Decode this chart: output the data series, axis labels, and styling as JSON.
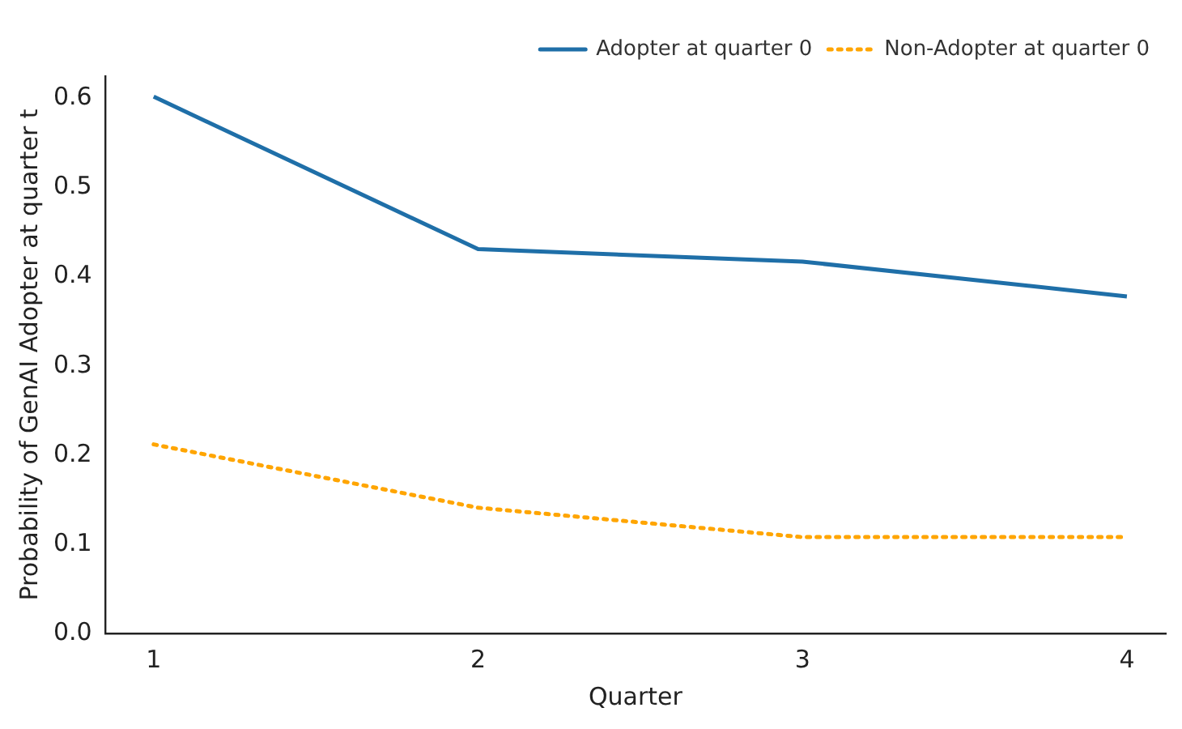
{
  "chart_data": {
    "type": "line",
    "xlabel": "Quarter",
    "ylabel": "Probability of GenAI Adopter at quarter t",
    "x": [
      1,
      2,
      3,
      4
    ],
    "series": [
      {
        "name": "Adopter at quarter 0",
        "color": "#1f6fa8",
        "values": [
          0.602,
          0.431,
          0.417,
          0.378
        ],
        "line_style": "solid"
      },
      {
        "name": "Non-Adopter at quarter 0",
        "color": "#ffa500",
        "values": [
          0.212,
          0.141,
          0.108,
          0.108
        ],
        "line_style": "dotted"
      }
    ],
    "xlim": [
      0.85,
      4.12
    ],
    "xticks": [
      1,
      2,
      3,
      4
    ],
    "ylim": [
      0,
      0.625
    ],
    "yticks": [
      {
        "value": 0,
        "label": "0.0"
      },
      0.1,
      0.2,
      0.3,
      0.4,
      0.5,
      0.6
    ],
    "grid": false,
    "legend": "top right",
    "marker": "none"
  }
}
